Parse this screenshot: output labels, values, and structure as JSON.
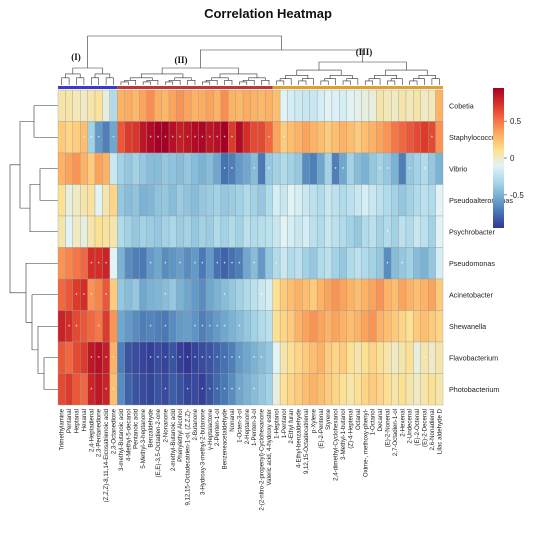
{
  "chart_data": {
    "type": "heatmap",
    "title": "Correlation Heatmap",
    "rows": [
      "Cobetia",
      "Staphylococcus",
      "Vibrio",
      "Pseudoalteromonas",
      "Psychrobacter",
      "Pseudomonas",
      "Acinetobacter",
      "Shewanella",
      "Flavobacterium",
      "Photobacterium"
    ],
    "columns": [
      "Trimethylamine",
      "Pentanal",
      "Heptanal",
      "Hexanal",
      "2,4-Heptadienal",
      "2,3-Pentanedione",
      "(Z,Z,Z)-8,11,14-Eicosatrienoic acid",
      "2,3-Octanedione",
      "3-methyl-Butanoic acid",
      "4-Methyl-5-decanol",
      "Pentanoic acid",
      "5-Methyl-3-heptanone",
      "Benzaldehyde",
      "(E,E)-3,5-Octadien-2-one",
      "2-Nonanone",
      "2-methyl-Butanoic acid",
      "Phenylethyl Alcohol",
      "9,12,15-Octadecatrien-1-ol, (Z,Z,Z)-",
      "2-Butanone",
      "3-Hydroxy-3-methyl-2-butanone",
      "γ-Heptalactone",
      "2-Penten-1-ol",
      "Benzeneacetaldehyde",
      "Nonanal",
      "1-Octen-3-ol",
      "2-Heptanone",
      "1-Penten-3-ol",
      "2-(2-nitro-2-propenyl)-Cyclohexanone",
      "Valeric acid, 4-hydroxy ester",
      "1-Heptanol",
      "1-Pentanol",
      "2-Ethyl furan",
      "4-Ethyl-benzaldehyde",
      "9,12,15-Octadecatrienal",
      "p-Xylene",
      "(E)-2-Pentenal",
      "Styrene",
      "2,4-dimethyl-Cyclohexanol",
      "3-Methyl-1-butanol",
      "(Z)-4-Heptenal",
      "Octanal",
      "Oxime-, methoxy-phenyl-",
      "1-Octanol",
      "Decanal",
      "(E)-2-Nonenal",
      "2,7-Octadien-1-ol",
      "2-Hexenal",
      "2-Undecenal",
      "(E)-2-Octenal",
      "(E)-2-Decenal",
      "2,6-Nonadienal",
      "Lilac aldehyde D"
    ],
    "groups": [
      {
        "label": "(I)",
        "color": "#3a3ad0"
      },
      {
        "label": "(II)",
        "color": "#c03535"
      },
      {
        "label": "(III)",
        "color": "#e0a030"
      }
    ],
    "group_sizes": [
      8,
      21,
      23
    ],
    "values": [
      [
        0.05,
        0.06,
        0.02,
        0.0,
        0.05,
        0.08,
        -0.05,
        -0.3,
        0.3,
        0.32,
        0.28,
        0.35,
        0.42,
        0.32,
        0.28,
        0.35,
        0.4,
        0.35,
        0.3,
        0.32,
        0.35,
        0.3,
        0.42,
        0.3,
        0.28,
        0.32,
        0.3,
        0.28,
        0.3,
        0.25,
        -0.1,
        -0.15,
        -0.18,
        -0.2,
        -0.2,
        -0.15,
        -0.1,
        -0.12,
        -0.15,
        -0.1,
        -0.08,
        -0.05,
        -0.05,
        0.05,
        0.02,
        0.0,
        0.05,
        0.02,
        0.05,
        0.0,
        0.02,
        0.3
      ],
      [
        0.2,
        0.15,
        0.18,
        0.25,
        -0.35,
        -0.6,
        -0.7,
        -0.55,
        0.6,
        0.7,
        0.72,
        0.85,
        0.9,
        0.95,
        0.95,
        0.88,
        0.82,
        0.85,
        0.9,
        0.92,
        0.85,
        0.88,
        0.95,
        0.7,
        0.9,
        0.75,
        0.65,
        0.65,
        0.55,
        0.35,
        0.2,
        0.25,
        0.3,
        0.35,
        0.3,
        0.25,
        0.2,
        0.25,
        0.3,
        0.25,
        0.2,
        0.25,
        0.3,
        0.35,
        0.4,
        0.5,
        0.55,
        0.6,
        0.65,
        0.7,
        0.65,
        0.4
      ],
      [
        0.3,
        0.35,
        0.4,
        0.3,
        0.2,
        0.35,
        0.3,
        -0.2,
        -0.35,
        -0.4,
        -0.35,
        -0.4,
        -0.45,
        -0.45,
        -0.4,
        -0.42,
        -0.45,
        -0.4,
        -0.45,
        -0.5,
        -0.45,
        -0.55,
        -0.75,
        -0.7,
        -0.6,
        -0.55,
        -0.45,
        -0.72,
        -0.4,
        -0.35,
        -0.3,
        -0.35,
        -0.4,
        -0.65,
        -0.7,
        -0.55,
        -0.35,
        -0.7,
        -0.55,
        -0.35,
        -0.45,
        -0.5,
        -0.4,
        -0.35,
        -0.4,
        -0.5,
        -0.7,
        -0.4,
        -0.35,
        -0.3,
        -0.4,
        -0.5
      ],
      [
        0.1,
        -0.05,
        0.0,
        0.05,
        0.08,
        -0.1,
        0.05,
        0.15,
        -0.4,
        -0.45,
        -0.42,
        -0.5,
        -0.48,
        -0.42,
        -0.4,
        -0.45,
        -0.38,
        -0.42,
        -0.45,
        -0.4,
        -0.38,
        -0.35,
        -0.4,
        -0.38,
        -0.35,
        -0.3,
        -0.35,
        -0.4,
        -0.3,
        -0.15,
        -0.2,
        -0.1,
        -0.15,
        -0.2,
        -0.25,
        -0.3,
        -0.2,
        -0.25,
        -0.3,
        -0.25,
        -0.2,
        -0.15,
        -0.2,
        -0.25,
        -0.3,
        -0.35,
        -0.4,
        -0.35,
        -0.3,
        -0.25,
        -0.3,
        -0.1
      ],
      [
        0.05,
        -0.1,
        0.0,
        -0.05,
        0.05,
        0.1,
        0.08,
        0.05,
        -0.3,
        -0.35,
        -0.4,
        -0.35,
        -0.38,
        -0.4,
        -0.35,
        -0.32,
        -0.38,
        -0.35,
        -0.4,
        -0.35,
        -0.38,
        -0.3,
        -0.35,
        -0.3,
        -0.35,
        -0.25,
        -0.3,
        -0.28,
        -0.25,
        -0.2,
        -0.1,
        -0.15,
        -0.2,
        -0.15,
        -0.25,
        -0.3,
        -0.2,
        -0.25,
        -0.3,
        -0.35,
        -0.4,
        -0.3,
        -0.25,
        -0.35,
        -0.3,
        -0.35,
        -0.25,
        -0.3,
        -0.2,
        -0.25,
        -0.35,
        -0.1
      ],
      [
        0.4,
        0.45,
        0.5,
        0.55,
        0.75,
        0.75,
        0.8,
        -0.1,
        -0.5,
        -0.65,
        -0.7,
        -0.72,
        -0.6,
        -0.55,
        -0.65,
        -0.62,
        -0.58,
        -0.65,
        -0.6,
        -0.72,
        -0.6,
        -0.75,
        -0.8,
        -0.75,
        -0.7,
        -0.55,
        -0.45,
        -0.6,
        -0.4,
        -0.3,
        -0.2,
        -0.3,
        -0.25,
        -0.35,
        -0.4,
        -0.3,
        -0.25,
        -0.35,
        -0.4,
        -0.3,
        -0.25,
        -0.3,
        -0.35,
        -0.4,
        -0.65,
        -0.45,
        -0.4,
        -0.35,
        -0.45,
        -0.5,
        -0.4,
        -0.15
      ],
      [
        0.55,
        0.6,
        0.7,
        0.75,
        0.4,
        0.45,
        0.6,
        0.2,
        -0.4,
        -0.45,
        -0.4,
        -0.55,
        -0.5,
        -0.48,
        -0.45,
        -0.4,
        -0.5,
        -0.55,
        -0.6,
        -0.65,
        -0.55,
        -0.5,
        -0.45,
        -0.4,
        -0.35,
        -0.3,
        -0.25,
        -0.2,
        -0.15,
        0.1,
        0.2,
        0.25,
        0.3,
        0.25,
        0.2,
        0.3,
        0.35,
        0.4,
        0.35,
        0.3,
        0.25,
        0.3,
        0.35,
        0.4,
        0.3,
        0.25,
        0.35,
        0.3,
        0.25,
        0.3,
        0.35,
        0.2
      ],
      [
        0.8,
        0.75,
        0.65,
        0.6,
        0.55,
        0.5,
        0.7,
        0.4,
        -0.55,
        -0.6,
        -0.65,
        -0.7,
        -0.68,
        -0.7,
        -0.72,
        -0.65,
        -0.6,
        -0.58,
        -0.62,
        -0.7,
        -0.65,
        -0.6,
        -0.55,
        -0.5,
        -0.45,
        -0.4,
        -0.35,
        -0.3,
        -0.25,
        0.1,
        0.15,
        0.2,
        0.3,
        0.35,
        0.4,
        0.35,
        0.3,
        0.35,
        0.3,
        0.25,
        0.3,
        0.35,
        0.4,
        0.3,
        0.25,
        0.2,
        0.15,
        0.1,
        0.2,
        0.25,
        0.2,
        0.15
      ],
      [
        0.6,
        0.55,
        0.65,
        0.7,
        0.85,
        0.88,
        0.82,
        0.3,
        -0.7,
        -0.85,
        -0.88,
        -0.9,
        -0.92,
        -0.88,
        -0.9,
        -0.85,
        -0.92,
        -0.95,
        -0.9,
        -0.88,
        -0.85,
        -0.8,
        -0.75,
        -0.7,
        -0.6,
        -0.55,
        -0.5,
        -0.45,
        -0.4,
        -0.1,
        0.05,
        0.1,
        0.15,
        0.2,
        0.25,
        0.3,
        0.2,
        0.15,
        0.2,
        0.1,
        0.05,
        0.1,
        0.15,
        0.1,
        0.05,
        0.0,
        0.05,
        0.1,
        -0.05,
        0.05,
        0.0,
        0.05
      ],
      [
        0.65,
        0.7,
        0.6,
        0.55,
        0.8,
        0.85,
        0.8,
        0.25,
        -0.65,
        -0.8,
        -0.85,
        -0.88,
        -0.9,
        -0.85,
        -0.88,
        -0.82,
        -0.85,
        -0.9,
        -0.88,
        -0.92,
        -0.85,
        -0.78,
        -0.72,
        -0.65,
        -0.55,
        -0.5,
        -0.45,
        -0.4,
        -0.35,
        -0.05,
        0.1,
        0.15,
        0.2,
        0.25,
        0.3,
        0.25,
        0.2,
        0.15,
        0.1,
        0.05,
        0.1,
        0.15,
        0.2,
        0.15,
        0.1,
        0.05,
        0.1,
        0.05,
        0.0,
        0.05,
        0.1,
        0.05
      ]
    ],
    "significance": [
      [],
      [
        3,
        4,
        5,
        7,
        12,
        13,
        14,
        15,
        16,
        17,
        18,
        19,
        20,
        21,
        22,
        23,
        28,
        30,
        50
      ],
      [
        22,
        23,
        26,
        28,
        37,
        38,
        43,
        44,
        47,
        49
      ],
      [],
      [
        44
      ],
      [
        4,
        5,
        6,
        7,
        12,
        14,
        16,
        18,
        19,
        21,
        22,
        23,
        24,
        26,
        29,
        44,
        46
      ],
      [
        2,
        3,
        4,
        6,
        14,
        22,
        27
      ],
      [
        1,
        2,
        5,
        12,
        14,
        18,
        19,
        20,
        21,
        22,
        24
      ],
      [
        4,
        5,
        6,
        7,
        12,
        13,
        14,
        15,
        16,
        17,
        18,
        19,
        20,
        21,
        22,
        23,
        24,
        26,
        27,
        49
      ],
      [
        4,
        6,
        7,
        14,
        17,
        19,
        20,
        21,
        22,
        23,
        24,
        26
      ]
    ],
    "color_scale": {
      "min": -0.95,
      "max": 0.95,
      "colors": [
        "#313695",
        "#4575b4",
        "#74add1",
        "#abd9e9",
        "#e0f3f8",
        "#fee090",
        "#fdae61",
        "#f46d43",
        "#d73027",
        "#a50026"
      ]
    },
    "legend": {
      "position": "right",
      "ticks": [
        {
          "value": 0.5,
          "label": "0.5"
        },
        {
          "value": 0,
          "label": "0"
        },
        {
          "value": -0.5,
          "label": "-0.5"
        }
      ]
    },
    "star_symbol": "*"
  }
}
